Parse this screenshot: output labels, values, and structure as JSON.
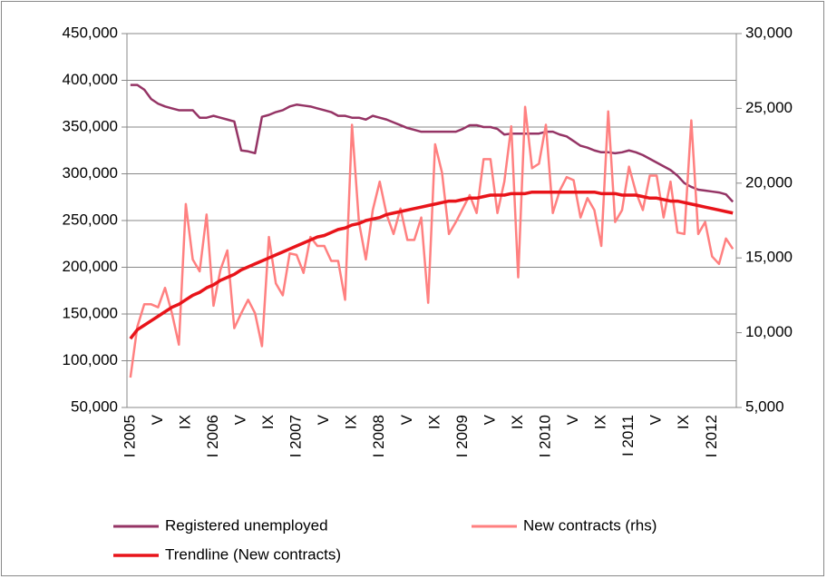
{
  "chart_data": {
    "type": "line",
    "categories": [
      "I 2005",
      null,
      null,
      null,
      "V",
      null,
      null,
      null,
      "IX",
      null,
      null,
      null,
      "I 2006",
      null,
      null,
      null,
      "V",
      null,
      null,
      null,
      "IX",
      null,
      null,
      null,
      "I 2007",
      null,
      null,
      null,
      "V",
      null,
      null,
      null,
      "IX",
      null,
      null,
      null,
      "I 2008",
      null,
      null,
      null,
      "V",
      null,
      null,
      null,
      "IX",
      null,
      null,
      null,
      "I 2009",
      null,
      null,
      null,
      "V",
      null,
      null,
      null,
      "IX",
      null,
      null,
      null,
      "I 2010",
      null,
      null,
      null,
      "V",
      null,
      null,
      null,
      "IX",
      null,
      null,
      null,
      "I 2011",
      null,
      null,
      null,
      "V",
      null,
      null,
      null,
      "IX",
      null,
      null,
      null,
      "I 2012",
      null,
      null,
      null
    ],
    "series": [
      {
        "name": "Registered unemployed",
        "color": "#953465",
        "values": [
          395000,
          395000,
          390000,
          380000,
          375000,
          372000,
          370000,
          368000,
          368000,
          368000,
          360000,
          360000,
          362000,
          360000,
          358000,
          356000,
          325000,
          324000,
          322000,
          361000,
          363000,
          366000,
          368000,
          372000,
          374000,
          373000,
          372000,
          370000,
          368000,
          366000,
          362000,
          362000,
          360000,
          360000,
          358000,
          362000,
          360000,
          358000,
          355000,
          352000,
          349000,
          347000,
          345000,
          345000,
          345000,
          345000,
          345000,
          345000,
          348000,
          352000,
          352000,
          350000,
          350000,
          348000,
          342000,
          343000,
          343000,
          343000,
          343000,
          343000,
          345000,
          345000,
          342000,
          340000,
          335000,
          330000,
          328000,
          325000,
          323000,
          323000,
          322000,
          323000,
          325000,
          323000,
          320000,
          316000,
          312000,
          308000,
          304000,
          298000,
          290000,
          286000,
          283000,
          282000,
          281000,
          280000,
          278000,
          270000
        ]
      },
      {
        "name": "New contracts (rhs)",
        "color": "#FF8080",
        "axis": "y2",
        "values": [
          7000,
          10400,
          11900,
          11900,
          11700,
          13000,
          11300,
          9200,
          18600,
          14900,
          14100,
          17900,
          11800,
          14200,
          15500,
          10300,
          11300,
          12200,
          11300,
          9100,
          16400,
          13300,
          12500,
          15300,
          15200,
          14000,
          16400,
          15800,
          15800,
          14800,
          14800,
          12200,
          23900,
          17400,
          14900,
          18200,
          20100,
          17900,
          16600,
          18300,
          16200,
          16200,
          17700,
          12000,
          22600,
          20700,
          16600,
          17400,
          18300,
          19200,
          18000,
          21600,
          21600,
          18000,
          20100,
          23800,
          13700,
          25100,
          21000,
          21300,
          23900,
          18000,
          19500,
          20400,
          20200,
          17700,
          19000,
          18200,
          15800,
          24800,
          17400,
          18200,
          21100,
          19400,
          18200,
          20500,
          20500,
          17700,
          20100,
          16700,
          16600,
          24200,
          16600,
          17400,
          15100,
          14600,
          16300,
          15600
        ]
      },
      {
        "name": "Trendline (New contracts)",
        "color": "#E8141A",
        "axis": "y2",
        "values": [
          9600,
          10200,
          10500,
          10800,
          11100,
          11400,
          11700,
          11900,
          12200,
          12500,
          12700,
          13000,
          13200,
          13500,
          13700,
          13900,
          14200,
          14400,
          14600,
          14800,
          15000,
          15200,
          15400,
          15600,
          15800,
          16000,
          16200,
          16400,
          16500,
          16700,
          16900,
          17000,
          17200,
          17300,
          17500,
          17600,
          17700,
          17900,
          18000,
          18100,
          18200,
          18300,
          18400,
          18500,
          18600,
          18700,
          18800,
          18800,
          18900,
          19000,
          19000,
          19100,
          19200,
          19200,
          19200,
          19300,
          19300,
          19300,
          19400,
          19400,
          19400,
          19400,
          19400,
          19400,
          19400,
          19400,
          19400,
          19400,
          19300,
          19300,
          19300,
          19200,
          19200,
          19200,
          19100,
          19000,
          19000,
          18900,
          18800,
          18800,
          18700,
          18600,
          18500,
          18400,
          18300,
          18200,
          18100,
          18000
        ]
      }
    ],
    "ylim": [
      50000,
      450000
    ],
    "yticks": [
      {
        "value": 50000,
        "label": "50,000"
      },
      {
        "value": 100000,
        "label": "100,000"
      },
      {
        "value": 150000,
        "label": "150,000"
      },
      {
        "value": 200000,
        "label": "200,000"
      },
      {
        "value": 250000,
        "label": "250,000"
      },
      {
        "value": 300000,
        "label": "300,000"
      },
      {
        "value": 350000,
        "label": "350,000"
      },
      {
        "value": 400000,
        "label": "400,000"
      },
      {
        "value": 450000,
        "label": "450,000"
      }
    ],
    "y2lim": [
      5000,
      30000
    ],
    "y2ticks": [
      {
        "value": 5000,
        "label": "5,000"
      },
      {
        "value": 10000,
        "label": "10,000"
      },
      {
        "value": 15000,
        "label": "15,000"
      },
      {
        "value": 20000,
        "label": "20,000"
      },
      {
        "value": 25000,
        "label": "25,000"
      },
      {
        "value": 30000,
        "label": "30,000"
      }
    ],
    "grid": true,
    "legend": "bottom"
  }
}
